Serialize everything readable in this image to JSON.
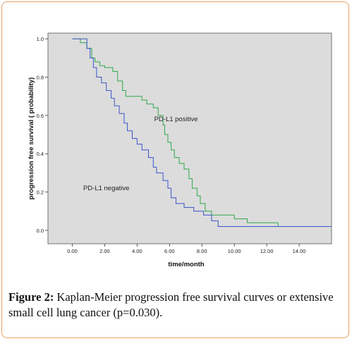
{
  "chart_data": {
    "type": "line",
    "xlabel": "time/month",
    "ylabel": "progression free survival ( probability)",
    "xlim": [
      -1.5,
      16.0
    ],
    "ylim": [
      -0.07,
      1.03
    ],
    "x_ticks": [
      "0.00",
      "2.00",
      "4.00",
      "6.00",
      "8.00",
      "10.00",
      "12.00",
      "14.00"
    ],
    "x_tick_values": [
      0,
      2,
      4,
      6,
      8,
      10,
      12,
      14
    ],
    "y_ticks": [
      "0.0",
      "0.2",
      "0.4",
      "0.6",
      "0.8",
      "1.0"
    ],
    "y_tick_values": [
      0,
      0.2,
      0.4,
      0.6,
      0.8,
      1.0
    ],
    "grid": false,
    "background": "#dcdcdc",
    "series": [
      {
        "name": "PD-L1 positive",
        "color": "#2ea84a",
        "points": [
          [
            0,
            1.0
          ],
          [
            0.5,
            1.0
          ],
          [
            0.5,
            0.98
          ],
          [
            0.9,
            0.98
          ],
          [
            0.9,
            0.95
          ],
          [
            1.2,
            0.95
          ],
          [
            1.2,
            0.9
          ],
          [
            1.4,
            0.9
          ],
          [
            1.4,
            0.88
          ],
          [
            1.7,
            0.88
          ],
          [
            1.7,
            0.86
          ],
          [
            2.0,
            0.86
          ],
          [
            2.0,
            0.85
          ],
          [
            2.5,
            0.85
          ],
          [
            2.5,
            0.83
          ],
          [
            2.8,
            0.83
          ],
          [
            2.8,
            0.78
          ],
          [
            3.1,
            0.78
          ],
          [
            3.1,
            0.73
          ],
          [
            3.3,
            0.73
          ],
          [
            3.3,
            0.7
          ],
          [
            4.3,
            0.7
          ],
          [
            4.3,
            0.68
          ],
          [
            4.6,
            0.68
          ],
          [
            4.6,
            0.66
          ],
          [
            5.0,
            0.66
          ],
          [
            5.0,
            0.64
          ],
          [
            5.3,
            0.64
          ],
          [
            5.3,
            0.6
          ],
          [
            5.6,
            0.6
          ],
          [
            5.6,
            0.55
          ],
          [
            5.7,
            0.55
          ],
          [
            5.7,
            0.5
          ],
          [
            5.9,
            0.5
          ],
          [
            5.9,
            0.46
          ],
          [
            6.1,
            0.46
          ],
          [
            6.1,
            0.42
          ],
          [
            6.3,
            0.42
          ],
          [
            6.3,
            0.38
          ],
          [
            6.6,
            0.38
          ],
          [
            6.6,
            0.35
          ],
          [
            6.9,
            0.35
          ],
          [
            6.9,
            0.32
          ],
          [
            7.2,
            0.32
          ],
          [
            7.2,
            0.27
          ],
          [
            7.4,
            0.27
          ],
          [
            7.4,
            0.22
          ],
          [
            7.7,
            0.22
          ],
          [
            7.7,
            0.18
          ],
          [
            7.9,
            0.18
          ],
          [
            7.9,
            0.14
          ],
          [
            8.2,
            0.14
          ],
          [
            8.2,
            0.1
          ],
          [
            8.6,
            0.1
          ],
          [
            8.6,
            0.08
          ],
          [
            10.0,
            0.08
          ],
          [
            10.0,
            0.06
          ],
          [
            10.8,
            0.06
          ],
          [
            10.8,
            0.04
          ],
          [
            12.7,
            0.04
          ],
          [
            12.7,
            0.02
          ],
          [
            16.0,
            0.02
          ]
        ]
      },
      {
        "name": "PD-L1 negative",
        "color": "#3a55c8",
        "points": [
          [
            0,
            1.0
          ],
          [
            0.9,
            1.0
          ],
          [
            0.9,
            0.95
          ],
          [
            1.1,
            0.95
          ],
          [
            1.1,
            0.9
          ],
          [
            1.3,
            0.9
          ],
          [
            1.3,
            0.85
          ],
          [
            1.5,
            0.85
          ],
          [
            1.5,
            0.8
          ],
          [
            1.8,
            0.8
          ],
          [
            1.8,
            0.77
          ],
          [
            2.1,
            0.77
          ],
          [
            2.1,
            0.73
          ],
          [
            2.4,
            0.73
          ],
          [
            2.4,
            0.69
          ],
          [
            2.6,
            0.69
          ],
          [
            2.6,
            0.65
          ],
          [
            2.9,
            0.65
          ],
          [
            2.9,
            0.61
          ],
          [
            3.2,
            0.61
          ],
          [
            3.2,
            0.56
          ],
          [
            3.4,
            0.56
          ],
          [
            3.4,
            0.52
          ],
          [
            3.7,
            0.52
          ],
          [
            3.7,
            0.48
          ],
          [
            4.0,
            0.48
          ],
          [
            4.0,
            0.45
          ],
          [
            4.3,
            0.45
          ],
          [
            4.3,
            0.42
          ],
          [
            4.7,
            0.42
          ],
          [
            4.7,
            0.38
          ],
          [
            5.0,
            0.38
          ],
          [
            5.0,
            0.33
          ],
          [
            5.2,
            0.33
          ],
          [
            5.2,
            0.3
          ],
          [
            5.6,
            0.3
          ],
          [
            5.6,
            0.26
          ],
          [
            5.9,
            0.26
          ],
          [
            5.9,
            0.22
          ],
          [
            6.1,
            0.22
          ],
          [
            6.1,
            0.17
          ],
          [
            6.4,
            0.17
          ],
          [
            6.4,
            0.14
          ],
          [
            6.9,
            0.14
          ],
          [
            6.9,
            0.12
          ],
          [
            7.5,
            0.12
          ],
          [
            7.5,
            0.1
          ],
          [
            8.1,
            0.1
          ],
          [
            8.1,
            0.08
          ],
          [
            8.6,
            0.08
          ],
          [
            8.6,
            0.05
          ],
          [
            9.0,
            0.05
          ],
          [
            9.0,
            0.02
          ],
          [
            16.0,
            0.02
          ]
        ]
      }
    ],
    "annotations": [
      {
        "text": "PD-L1 positive",
        "x": 6.4,
        "y": 0.57
      },
      {
        "text": "PD-L1 negative",
        "x": 2.1,
        "y": 0.21
      }
    ]
  },
  "caption": {
    "lead": "Figure 2:",
    "text": " Kaplan-Meier progression free survival curves or extensive small cell lung cancer (p=0.030)."
  }
}
